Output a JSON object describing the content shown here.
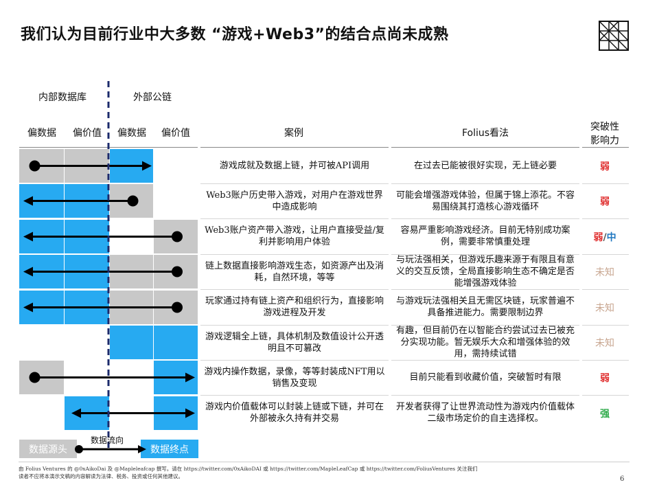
{
  "title": "我们认为目前行业中大多数 “游戏+Web3”的结合点尚未成熟",
  "groups": {
    "internal": "内部数据库",
    "external": "外部公链"
  },
  "columns": {
    "c1": "偏数据",
    "c2": "偏价值",
    "c3": "偏数据",
    "c4": "偏价值",
    "case": "案例",
    "view": "Folius看法",
    "impact_line1": "突破性",
    "impact_line2": "影响力"
  },
  "rows": [
    {
      "cells": [
        "gray",
        "gray",
        "blue",
        "white"
      ],
      "arrow": "ltr",
      "from": 0,
      "to": 2,
      "case": "游戏成就及数据上链，并可被API调用",
      "view": "在过去已能被很好实现，无上链必要",
      "rating": [
        {
          "text": "弱",
          "color": "#e03030"
        }
      ]
    },
    {
      "cells": [
        "blue",
        "blue",
        "gray",
        "white"
      ],
      "arrow": "rtl",
      "from": 2,
      "to": 0,
      "case": "Web3账户历史带入游戏，对用户在游戏世界中造成影响",
      "view": "可能会增强游戏体验，但属于锦上添花。不容易围绕其打造核心游戏循环",
      "rating": [
        {
          "text": "弱",
          "color": "#e03030"
        }
      ]
    },
    {
      "cells": [
        "blue",
        "blue",
        "white",
        "gray"
      ],
      "arrow": "rtl",
      "from": 3,
      "to": 0,
      "case": "Web3账户资产带入游戏，让用户直接受益/复利并影响用户体验",
      "view": "容易严重影响游戏经济。目前无特别成功案例，需要非常慎重处理",
      "rating": [
        {
          "text": "弱",
          "color": "#e03030"
        },
        {
          "text": "/",
          "color": "#555555"
        },
        {
          "text": "中",
          "color": "#1f77c0"
        }
      ]
    },
    {
      "cells": [
        "blue",
        "blue",
        "gray",
        "gray"
      ],
      "arrow": "rtl",
      "from": 3,
      "to": 0,
      "case": "链上数据直接影响游戏生态，如资源产出及消耗，自然环境，等等",
      "view": "与玩法强相关，但游戏乐趣来源于有限且有意义的交互反馈，全局直接影响生态不确定是否能增强游戏体验",
      "rating": [
        {
          "text": "未知",
          "color": "#c8a690"
        }
      ]
    },
    {
      "cells": [
        "blue",
        "blue",
        "gray",
        "gray"
      ],
      "arrow": "rtl",
      "from": 3,
      "to": 0,
      "case": "玩家通过持有链上资产和组织行为，直接影响游戏进程及开发",
      "view": "与游戏玩法强相关且无需区块链，玩家普遍不具备推进能力。需要限制边界",
      "rating": [
        {
          "text": "未知",
          "color": "#c8a690"
        }
      ]
    },
    {
      "cells": [
        "white",
        "white",
        "blue",
        "blue"
      ],
      "arrow": "none",
      "from": 0,
      "to": 0,
      "case": "游戏逻辑全上链，具体机制及数值设计公开透明且不可篡改",
      "view": "有趣，但目前仍在以智能合约尝试过去已被充分实现功能。暂无娱乐大众和增强体验的效用，需持续试错",
      "rating": [
        {
          "text": "未知",
          "color": "#c8a690"
        }
      ]
    },
    {
      "cells": [
        "gray",
        "white",
        "white",
        "blue"
      ],
      "arrow": "ltr",
      "from": 0,
      "to": 3,
      "case": "游戏内操作数据，录像，等等封装成NFT用以销售及变现",
      "view": "目前只能看到收藏价值，突破暂时有限",
      "rating": [
        {
          "text": "弱",
          "color": "#e03030"
        }
      ]
    },
    {
      "cells": [
        "white",
        "blue",
        "white",
        "blue"
      ],
      "arrow": "both",
      "from": 1,
      "to": 3,
      "case": "游戏内价值载体可以封装上链或下链，并可在外部被永久持有并交易",
      "view": "开发者获得了让世界流动性为游戏内价值载体二级市场定价的自主选择权。",
      "rating": [
        {
          "text": "强",
          "color": "#2eaa4a"
        }
      ]
    }
  ],
  "legend": {
    "source": "数据源头",
    "flow": "数据流向",
    "end": "数据终点"
  },
  "footer": {
    "line1": "由 Folius Ventures 的 @0xAikoDai 及 @Mapleleafcap 撰写。请在 https://twitter.com/0xAikoDAI 或 https://twitter.com/MapleLeafCap 或 https://twitter.com/FoliusVentures 关注我们",
    "line2": "读者不应将本演示文稿的内容解读为法律、税务、投资或任何其他建议。"
  },
  "page_number": "6",
  "colors": {
    "blue": "#27aaf1",
    "gray": "#c8c8c8",
    "weak": "#e03030",
    "medium": "#1f77c0",
    "unknown": "#c8a690",
    "strong": "#2eaa4a"
  }
}
